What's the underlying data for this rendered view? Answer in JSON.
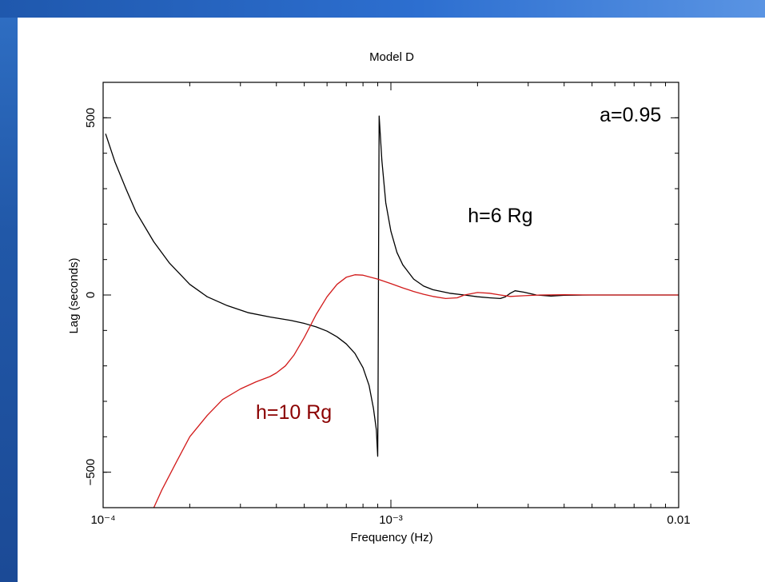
{
  "colors": {
    "band_top": "#2d6fd0",
    "band_left": "#2158a8",
    "series_black": "#000000",
    "series_red": "#d21a1a",
    "annotation_red": "#8b0000"
  },
  "chart_data": {
    "type": "line",
    "title": "Model D",
    "xlabel": "Frequency (Hz)",
    "ylabel": "Lag (seconds)",
    "xscale": "log",
    "xlim": [
      0.0001,
      0.01
    ],
    "ylim": [
      -600,
      600
    ],
    "xticks": [
      {
        "value": 0.0001,
        "label": "10⁻⁴"
      },
      {
        "value": 0.001,
        "label": "10⁻³"
      },
      {
        "value": 0.01,
        "label": "0.01"
      }
    ],
    "yticks": [
      {
        "value": -500,
        "label": "−500"
      },
      {
        "value": 0,
        "label": "0"
      },
      {
        "value": 500,
        "label": "500"
      }
    ],
    "grid": false,
    "annotations": [
      {
        "text": "a=0.95",
        "x": 0.0068,
        "y": 490,
        "color": "#000000"
      },
      {
        "text": "h=6 Rg",
        "x": 0.0024,
        "y": 205,
        "color": "#000000"
      },
      {
        "text": "h=10 Rg",
        "x": 0.00046,
        "y": -350,
        "color": "#8b0000"
      }
    ],
    "series": [
      {
        "id": "h6",
        "color": "#000000",
        "points": [
          [
            0.000102,
            455
          ],
          [
            0.00011,
            375
          ],
          [
            0.00012,
            300
          ],
          [
            0.00013,
            235
          ],
          [
            0.00015,
            150
          ],
          [
            0.00017,
            90
          ],
          [
            0.0002,
            30
          ],
          [
            0.00023,
            -5
          ],
          [
            0.00027,
            -30
          ],
          [
            0.00032,
            -50
          ],
          [
            0.00038,
            -62
          ],
          [
            0.00045,
            -72
          ],
          [
            0.0005,
            -80
          ],
          [
            0.00055,
            -90
          ],
          [
            0.0006,
            -102
          ],
          [
            0.00065,
            -118
          ],
          [
            0.0007,
            -138
          ],
          [
            0.00075,
            -165
          ],
          [
            0.0008,
            -205
          ],
          [
            0.00084,
            -255
          ],
          [
            0.00087,
            -320
          ],
          [
            0.00089,
            -380
          ],
          [
            0.0009,
            -455
          ],
          [
            0.000902,
            -300
          ],
          [
            0.000905,
            0
          ],
          [
            0.000908,
            300
          ],
          [
            0.00091,
            505
          ],
          [
            0.00093,
            380
          ],
          [
            0.00096,
            260
          ],
          [
            0.001,
            180
          ],
          [
            0.00105,
            120
          ],
          [
            0.0011,
            85
          ],
          [
            0.0012,
            45
          ],
          [
            0.0013,
            25
          ],
          [
            0.0014,
            15
          ],
          [
            0.0016,
            5
          ],
          [
            0.0018,
            0
          ],
          [
            0.002,
            -5
          ],
          [
            0.0022,
            -8
          ],
          [
            0.0024,
            -10
          ],
          [
            0.0025,
            -5
          ],
          [
            0.0026,
            5
          ],
          [
            0.0027,
            12
          ],
          [
            0.0029,
            8
          ],
          [
            0.0032,
            0
          ],
          [
            0.0036,
            -3
          ],
          [
            0.004,
            -1
          ],
          [
            0.005,
            0
          ],
          [
            0.007,
            0
          ],
          [
            0.01,
            0
          ]
        ]
      },
      {
        "id": "h10",
        "color": "#d21a1a",
        "points": [
          [
            0.00015,
            -600
          ],
          [
            0.00016,
            -550
          ],
          [
            0.00018,
            -470
          ],
          [
            0.0002,
            -400
          ],
          [
            0.00023,
            -340
          ],
          [
            0.00026,
            -295
          ],
          [
            0.0003,
            -265
          ],
          [
            0.00034,
            -245
          ],
          [
            0.00038,
            -230
          ],
          [
            0.0004,
            -220
          ],
          [
            0.00043,
            -200
          ],
          [
            0.00046,
            -170
          ],
          [
            0.0005,
            -120
          ],
          [
            0.00055,
            -55
          ],
          [
            0.0006,
            -5
          ],
          [
            0.00065,
            30
          ],
          [
            0.0007,
            50
          ],
          [
            0.00075,
            57
          ],
          [
            0.0008,
            56
          ],
          [
            0.0009,
            45
          ],
          [
            0.001,
            32
          ],
          [
            0.0011,
            20
          ],
          [
            0.0012,
            10
          ],
          [
            0.0013,
            2
          ],
          [
            0.0014,
            -4
          ],
          [
            0.00155,
            -10
          ],
          [
            0.0017,
            -8
          ],
          [
            0.0018,
            0
          ],
          [
            0.002,
            7
          ],
          [
            0.0022,
            5
          ],
          [
            0.0024,
            0
          ],
          [
            0.0026,
            -4
          ],
          [
            0.0029,
            -2
          ],
          [
            0.0033,
            0
          ],
          [
            0.004,
            1
          ],
          [
            0.005,
            0
          ],
          [
            0.007,
            0
          ],
          [
            0.01,
            0
          ]
        ]
      }
    ]
  }
}
